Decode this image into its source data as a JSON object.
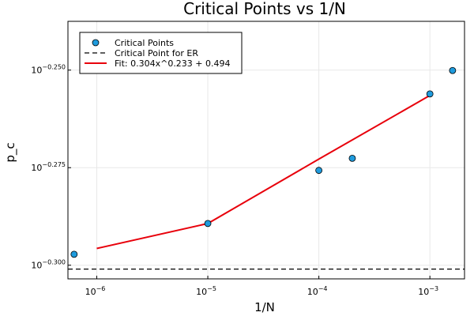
{
  "chart_data": {
    "type": "scatter",
    "title": "Critical Points vs 1/N",
    "xlabel": "1/N",
    "ylabel": "p_c",
    "xscale": "log10",
    "yscale": "log10",
    "xlim": [
      5.5e-07,
      0.00205
    ],
    "ylim": [
      -0.3035,
      -0.2375
    ],
    "grid": true,
    "legend_position": "top-left",
    "x_ticks": [
      {
        "value": 1e-06,
        "base": "10",
        "exp": "−6"
      },
      {
        "value": 1e-05,
        "base": "10",
        "exp": "−5"
      },
      {
        "value": 0.0001,
        "base": "10",
        "exp": "−4"
      },
      {
        "value": 0.001,
        "base": "10",
        "exp": "−3"
      }
    ],
    "y_ticks": [
      {
        "value": -0.25,
        "base": "10",
        "exp": "−0.250"
      },
      {
        "value": -0.275,
        "base": "10",
        "exp": "−0.275"
      },
      {
        "value": -0.3,
        "base": "10",
        "exp": "−0.300"
      }
    ],
    "series": [
      {
        "name": "Critical Points",
        "kind": "scatter",
        "color": "#1f9bdd",
        "points": [
          {
            "x": 6.25e-07,
            "y": -0.2972
          },
          {
            "x": 1e-05,
            "y": -0.2893
          },
          {
            "x": 0.0001,
            "y": -0.2757
          },
          {
            "x": 0.0002,
            "y": -0.2726
          },
          {
            "x": 0.001,
            "y": -0.2561
          },
          {
            "x": 0.0016,
            "y": -0.2501
          }
        ]
      },
      {
        "name": "Critical Point for ER",
        "kind": "hline",
        "color": "#000000",
        "dash": "dashed",
        "y": -0.301
      },
      {
        "name": "Fit: 0.304x^0.233 + 0.494",
        "kind": "line",
        "color": "#e8000b",
        "points": [
          {
            "x": 1e-06,
            "y": -0.2957
          },
          {
            "x": 1e-05,
            "y": -0.2893
          },
          {
            "x": 0.0001,
            "y": -0.2728
          },
          {
            "x": 0.001,
            "y": -0.2565
          }
        ]
      }
    ]
  }
}
